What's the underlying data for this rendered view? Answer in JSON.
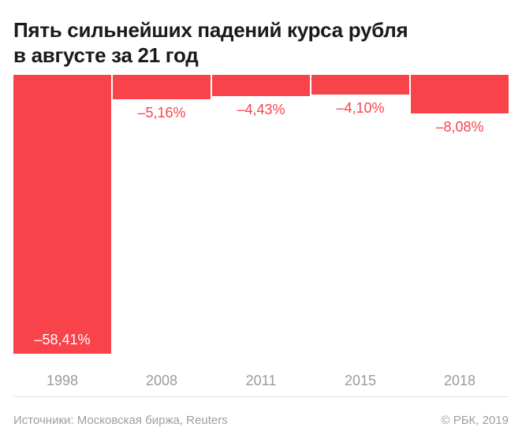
{
  "header": {
    "title_line1": "Пять сильнейших падений курса рубля",
    "title_line2": "в августе за 21 год"
  },
  "chart_data": {
    "type": "bar",
    "title": "Пять сильнейших падений курса рубля в августе за 21 год",
    "categories": [
      "1998",
      "2008",
      "2011",
      "2015",
      "2018"
    ],
    "values": [
      -58.41,
      -5.16,
      -4.43,
      -4.1,
      -8.08
    ],
    "bar_labels": [
      "–58,41%",
      "–5,16%",
      "–4,43%",
      "–4,10%",
      "–8,08%"
    ],
    "xlabel": "",
    "ylabel": "",
    "ylim": [
      -58.41,
      0
    ],
    "orientation": "columns-extending-downward-from-top",
    "grid": false,
    "legend": false,
    "bar_color": "#f9434b",
    "label_color_inside": "#ffffff",
    "label_color_outside": "#f9434b",
    "axis_label_color": "#9b9b9b"
  },
  "footer": {
    "sources": "Источники: Московская биржа, Reuters",
    "copyright": "© РБК, 2019"
  }
}
